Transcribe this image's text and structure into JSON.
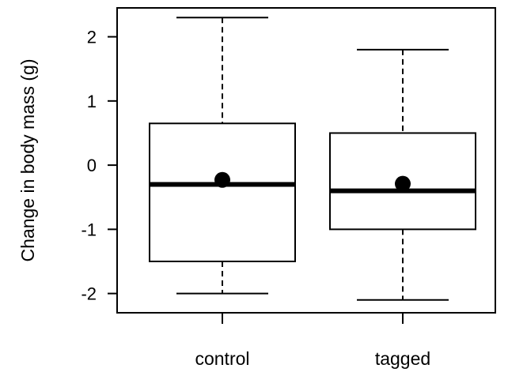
{
  "chart_data": {
    "type": "box",
    "title": "",
    "xlabel": "",
    "ylabel": "Change in body mass (g)",
    "categories": [
      "control",
      "tagged"
    ],
    "ylim": [
      -2.3,
      2.45
    ],
    "yticks": [
      -2,
      -1,
      0,
      1,
      2
    ],
    "ytick_labels": [
      "-2",
      "-1",
      "0",
      "1",
      "2"
    ],
    "grid": false,
    "legend": "none",
    "boxes": [
      {
        "category": "control",
        "whisker_low": -2.0,
        "q1": -1.5,
        "median": -0.3,
        "q3": 0.65,
        "whisker_high": 2.3,
        "mean": -0.23
      },
      {
        "category": "tagged",
        "whisker_low": -2.1,
        "q1": -1.0,
        "median": -0.4,
        "q3": 0.5,
        "whisker_high": 1.8,
        "mean": -0.29
      }
    ],
    "colors": {
      "stroke": "#000000",
      "box_fill": "#ffffff"
    }
  }
}
